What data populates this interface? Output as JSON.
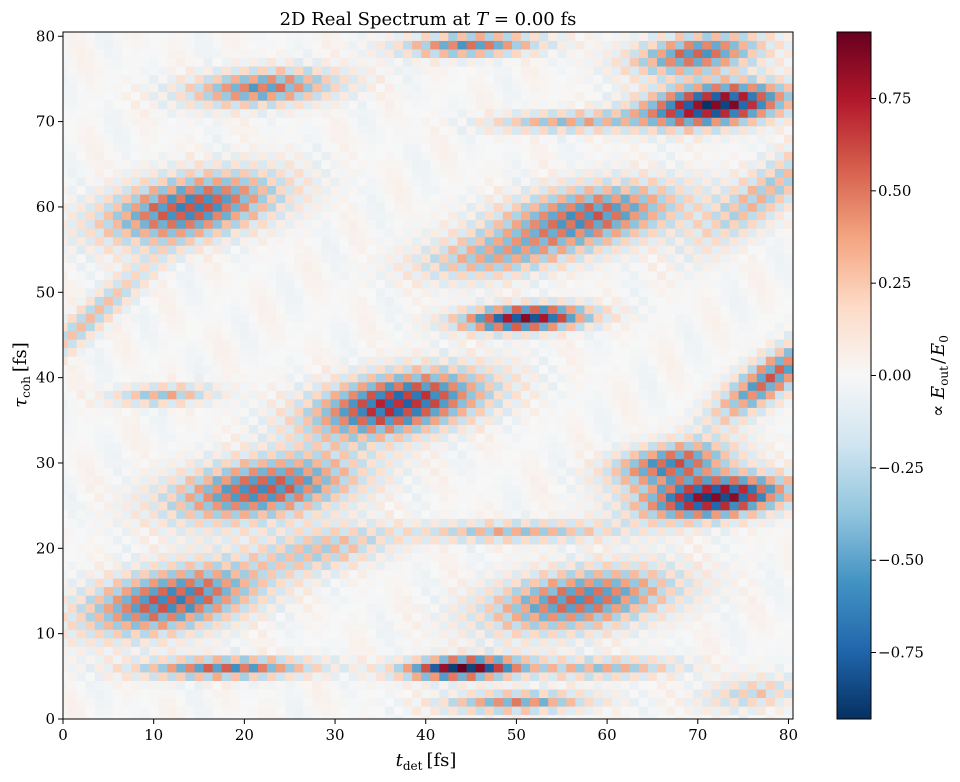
{
  "chart_data": {
    "type": "heatmap",
    "title": "2D Real Spectrum at T = 0.00 fs",
    "title_parts": {
      "prefix": "2D Real Spectrum at ",
      "var": "T",
      "suffix": " = 0.00 fs"
    },
    "xlabel": {
      "main": "t",
      "sub": "det",
      "unit": "[fs]"
    },
    "ylabel": {
      "main": "τ",
      "sub": "coh",
      "unit": "[fs]"
    },
    "colorbar_label": {
      "prefix": "∝ ",
      "num": "E",
      "num_sub": "out",
      "sep": "/",
      "den": "E",
      "den_sub": "0"
    },
    "colormap": "RdBu_r",
    "xlim": [
      0,
      80.5
    ],
    "ylim": [
      0,
      80.5
    ],
    "vlim": [
      -0.93,
      0.93
    ],
    "x_ticks": [
      0,
      10,
      20,
      30,
      40,
      50,
      60,
      70,
      80
    ],
    "x_tick_labels": [
      "0",
      "10",
      "20",
      "30",
      "40",
      "50",
      "60",
      "70",
      "80"
    ],
    "y_ticks": [
      0,
      10,
      20,
      30,
      40,
      50,
      60,
      70,
      80
    ],
    "y_tick_labels": [
      "0",
      "10",
      "20",
      "30",
      "40",
      "50",
      "60",
      "70",
      "80"
    ],
    "colorbar_ticks": [
      0.75,
      0.5,
      0.25,
      0.0,
      -0.25,
      -0.5,
      -0.75
    ],
    "colorbar_tick_labels": [
      "0.75",
      "0.50",
      "0.25",
      "0.00",
      "−0.25",
      "−0.50",
      "−0.75"
    ],
    "grid_step": 1,
    "checker_period_fs": 2,
    "lobes": [
      {
        "t": 72,
        "tau": 72,
        "amp": 0.88,
        "st": 5.5,
        "su": 1.8
      },
      {
        "t": 70,
        "tau": 78,
        "amp": 0.55,
        "st": 5.0,
        "su": 1.8
      },
      {
        "t": 72,
        "tau": 26,
        "amp": 0.85,
        "st": 5.5,
        "su": 1.8
      },
      {
        "t": 67,
        "tau": 30,
        "amp": 0.55,
        "st": 4.5,
        "su": 1.8
      },
      {
        "t": 44,
        "tau": 6,
        "amp": 0.9,
        "st": 4.5,
        "su": 0.9
      },
      {
        "t": 51,
        "tau": 47,
        "amp": 0.82,
        "st": 5.0,
        "su": 1.1
      },
      {
        "t": 37,
        "tau": 37,
        "amp": 0.72,
        "st": 6.5,
        "su": 2.8
      },
      {
        "t": 14,
        "tau": 60,
        "amp": 0.6,
        "st": 6.5,
        "su": 3.0
      },
      {
        "t": 12,
        "tau": 14,
        "amp": 0.6,
        "st": 6.5,
        "su": 3.0
      },
      {
        "t": 58,
        "tau": 59,
        "amp": 0.55,
        "st": 7.0,
        "su": 2.8
      },
      {
        "t": 57,
        "tau": 14,
        "amp": 0.55,
        "st": 7.0,
        "su": 2.8
      },
      {
        "t": 22,
        "tau": 27,
        "amp": 0.58,
        "st": 7.0,
        "su": 2.8
      },
      {
        "t": 22,
        "tau": 74,
        "amp": 0.5,
        "st": 6.0,
        "su": 1.6
      },
      {
        "t": 45,
        "tau": 79,
        "amp": 0.52,
        "st": 5.5,
        "su": 1.0
      },
      {
        "t": 50,
        "tau": 2,
        "amp": 0.45,
        "st": 6.0,
        "su": 0.9
      },
      {
        "t": 78,
        "tau": 40,
        "amp": 0.55,
        "st": 2.5,
        "su": 3.5
      },
      {
        "t": 18,
        "tau": 6,
        "amp": 0.55,
        "st": 7.0,
        "su": 0.9
      },
      {
        "t": 60,
        "tau": 6,
        "amp": 0.35,
        "st": 6.0,
        "su": 0.9
      },
      {
        "t": 11,
        "tau": 38,
        "amp": 0.35,
        "st": 4.0,
        "su": 0.9
      },
      {
        "t": 50,
        "tau": 22,
        "amp": 0.35,
        "st": 8.0,
        "su": 0.9
      },
      {
        "t": 55,
        "tau": 70,
        "amp": 0.35,
        "st": 6.0,
        "su": 0.9
      },
      {
        "t": 47,
        "tau": 54,
        "amp": 0.3,
        "st": 6.0,
        "su": 2.0
      },
      {
        "t": 29,
        "tau": 20,
        "amp": 0.28,
        "st": 5.0,
        "su": 2.0
      },
      {
        "t": 78,
        "tau": 62,
        "amp": 0.3,
        "st": 3.0,
        "su": 5.0
      },
      {
        "t": 3,
        "tau": 47,
        "amp": 0.3,
        "st": 1.8,
        "su": 5.0
      },
      {
        "t": 76,
        "tau": 3,
        "amp": 0.25,
        "st": 4.0,
        "su": 1.5
      }
    ]
  }
}
